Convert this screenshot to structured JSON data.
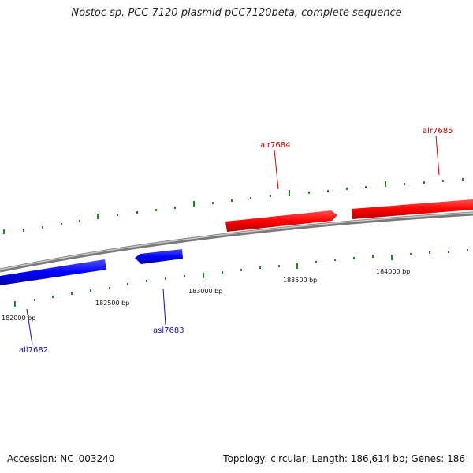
{
  "title": "Nostoc sp. PCC 7120 plasmid pCC7120beta, complete sequence",
  "footer": {
    "accession": "Accession: NC_003240",
    "summary": "Topology: circular; Length: 186,614 bp; Genes: 186"
  },
  "colors": {
    "forward_gene": "#ff0000",
    "reverse_gene": "#0000ff",
    "tick": "#1a8a1a",
    "backbone": "#888888",
    "forward_label": "#c40000",
    "reverse_label": "#1010b0"
  },
  "bp_labels": [
    "182000 bp",
    "182500 bp",
    "183000 bp",
    "183500 bp",
    "184000 bp"
  ],
  "genes": {
    "forward": [
      "alr7684",
      "alr7685"
    ],
    "reverse": [
      "all7682",
      "asl7683"
    ]
  }
}
